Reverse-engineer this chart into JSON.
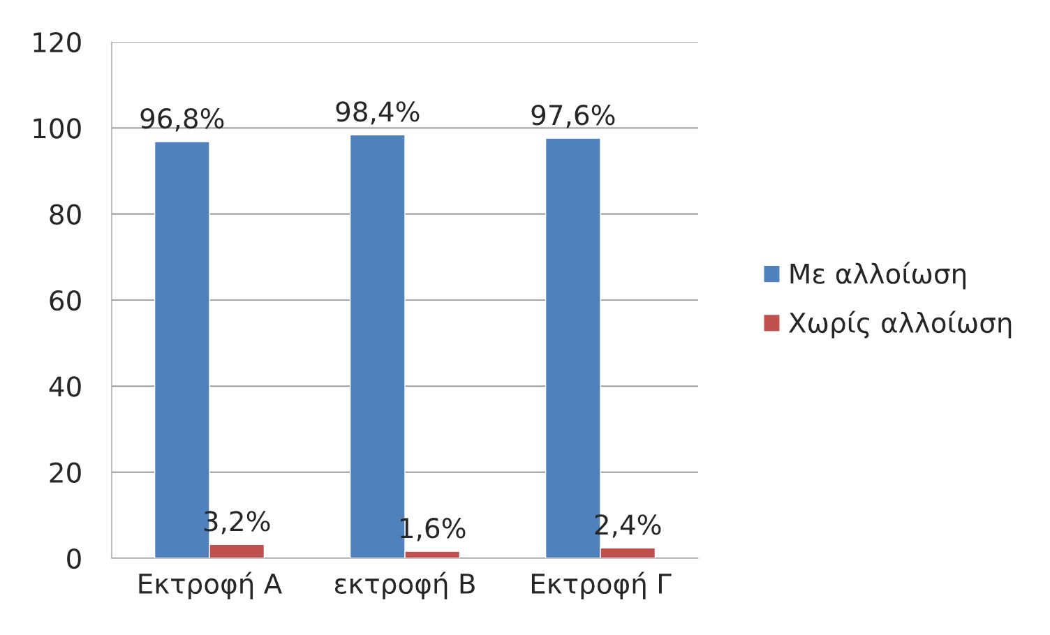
{
  "chart_data": {
    "type": "bar",
    "categories": [
      "Εκτροφή Α",
      "εκτροφή Β",
      "Εκτροφή Γ"
    ],
    "series": [
      {
        "name": "Με αλλοίωση",
        "color": "#4f81bd",
        "values": [
          96.8,
          98.4,
          97.6
        ],
        "value_labels": [
          "96,8%",
          "98,4%",
          "97,6%"
        ]
      },
      {
        "name": "Χωρίς αλλοίωση",
        "color": "#c0504d",
        "values": [
          3.2,
          1.6,
          2.4
        ],
        "value_labels": [
          "3,2%",
          "1,6%",
          "2,4%"
        ]
      }
    ],
    "ylim": [
      0,
      120
    ],
    "yticks": [
      0,
      20,
      40,
      60,
      80,
      100,
      120
    ],
    "grid": "y",
    "legend": "right"
  }
}
